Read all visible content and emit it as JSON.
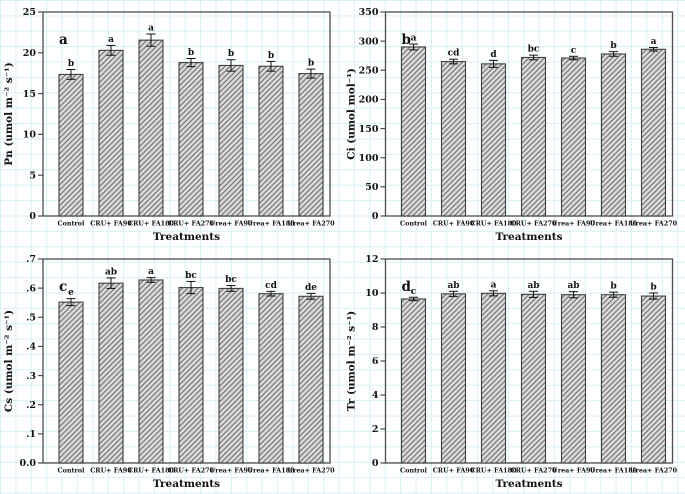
{
  "figure": {
    "xlabel": "Treatments",
    "grid_color": "#d7f0f7",
    "bar_fill_color": "#dcdcdc",
    "bar_hatch_color": "#6e6e6e",
    "bar_border_color": "#3f3f3f",
    "frame_color": "#4d4d4d",
    "error_bar_color": "#111111",
    "categories": [
      "Control",
      "CRU+ FA90",
      "CRU+ FA180",
      "CRU+ FA270",
      "Urea+ FA90",
      "Urea+ FA180",
      "Urea+ FA270"
    ]
  },
  "chart_data": [
    {
      "type": "bar",
      "panel_label": "a",
      "title": "",
      "ylabel": "Pn (umol m⁻² s⁻¹)",
      "xlabel": "Treatments",
      "categories": [
        "Control",
        "CRU+ FA90",
        "CRU+ FA180",
        "CRU+ FA270",
        "Urea+ FA90",
        "Urea+ FA180",
        "Urea+ FA270"
      ],
      "values": [
        17.35,
        20.3,
        21.55,
        18.8,
        18.45,
        18.35,
        17.45
      ],
      "errors": [
        0.6,
        0.6,
        0.75,
        0.5,
        0.7,
        0.6,
        0.55
      ],
      "sig_letters": [
        "b",
        "a",
        "a",
        "b",
        "b",
        "b",
        "b"
      ],
      "ylim": [
        0,
        25
      ],
      "yticks": [
        0,
        5,
        10,
        15,
        20,
        25
      ],
      "ytick_labels": [
        "0",
        "5",
        "10",
        "15",
        "20",
        "25"
      ],
      "grid": false,
      "legend": null
    },
    {
      "type": "bar",
      "panel_label": "b",
      "title": "",
      "ylabel": "Ci (umol mol⁻¹)",
      "xlabel": "Treatments",
      "categories": [
        "Control",
        "CRU+ FA90",
        "CRU+ FA180",
        "CRU+ FA270",
        "Urea+ FA90",
        "Urea+ FA180",
        "Urea+ FA270"
      ],
      "values": [
        290,
        265,
        261,
        272,
        271,
        278,
        286
      ],
      "errors": [
        5,
        4,
        6,
        4,
        3,
        4,
        3
      ],
      "sig_letters": [
        "a",
        "cd",
        "d",
        "bc",
        "c",
        "b",
        "a"
      ],
      "ylim": [
        0,
        350
      ],
      "yticks": [
        0,
        50,
        100,
        150,
        200,
        250,
        300,
        350
      ],
      "ytick_labels": [
        "0",
        "50",
        "100",
        "150",
        "200",
        "250",
        "300",
        "350"
      ],
      "grid": false,
      "legend": null
    },
    {
      "type": "bar",
      "panel_label": "c",
      "title": "",
      "ylabel": "Cs (umol m⁻² s⁻¹)",
      "xlabel": "Treatments",
      "categories": [
        "Control",
        "CRU+ FA90",
        "CRU+ FA180",
        "CRU+ FA270",
        "Urea+ FA90",
        "Urea+ FA180",
        "Urea+ FA270"
      ],
      "values": [
        0.552,
        0.617,
        0.628,
        0.602,
        0.599,
        0.581,
        0.572
      ],
      "errors": [
        0.012,
        0.018,
        0.008,
        0.021,
        0.01,
        0.008,
        0.01
      ],
      "sig_letters": [
        "e",
        "ab",
        "a",
        "bc",
        "bc",
        "cd",
        "de"
      ],
      "ylim": [
        0,
        0.7
      ],
      "yticks": [
        0,
        0.1,
        0.2,
        0.3,
        0.4,
        0.5,
        0.6,
        0.7
      ],
      "ytick_labels": [
        "0.0",
        ".1",
        ".2",
        ".3",
        ".4",
        ".5",
        ".6",
        ".7"
      ],
      "grid": false,
      "legend": null
    },
    {
      "type": "bar",
      "panel_label": "d",
      "title": "",
      "ylabel": "Tr (umol m⁻² s⁻¹)",
      "xlabel": "Treatments",
      "categories": [
        "Control",
        "CRU+ FA90",
        "CRU+ FA180",
        "CRU+ FA270",
        "Urea+ FA90",
        "Urea+ FA180",
        "Urea+ FA270"
      ],
      "values": [
        9.65,
        9.95,
        9.98,
        9.92,
        9.9,
        9.9,
        9.82
      ],
      "errors": [
        0.1,
        0.15,
        0.15,
        0.18,
        0.18,
        0.15,
        0.18
      ],
      "sig_letters": [
        "c",
        "ab",
        "a",
        "ab",
        "ab",
        "b",
        "b"
      ],
      "ylim": [
        0,
        12
      ],
      "yticks": [
        0,
        2,
        4,
        6,
        8,
        10,
        12
      ],
      "ytick_labels": [
        "0",
        "2",
        "4",
        "6",
        "8",
        "10",
        "12"
      ],
      "grid": false,
      "legend": null
    }
  ]
}
